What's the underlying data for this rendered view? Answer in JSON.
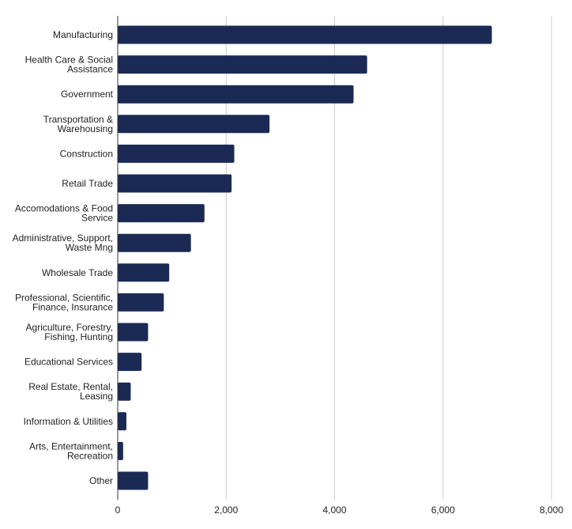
{
  "chart_data": {
    "type": "bar",
    "orientation": "horizontal",
    "title": "",
    "xlabel": "",
    "ylabel": "",
    "xlim": [
      0,
      8000
    ],
    "xticks": [
      0,
      2000,
      4000,
      6000,
      8000
    ],
    "xtick_labels": [
      "0",
      "2,000",
      "4,000",
      "6,000",
      "8,000"
    ],
    "grid": "vertical",
    "legend": "none",
    "bar_color": "#1b2a55",
    "categories": [
      [
        "Manufacturing"
      ],
      [
        "Health Care & Social",
        "Assistance"
      ],
      [
        "Government"
      ],
      [
        "Transportation &",
        "Warehousing"
      ],
      [
        "Construction"
      ],
      [
        "Retail Trade"
      ],
      [
        "Accomodations & Food",
        "Service"
      ],
      [
        "Administrative, Support,",
        "Waste Mng"
      ],
      [
        "Wholesale Trade"
      ],
      [
        "Professional, Scientific,",
        "Finance, Insurance"
      ],
      [
        "Agriculture, Forestry,",
        "Fishing, Hunting"
      ],
      [
        "Educational Services"
      ],
      [
        "Real Estate, Rental,",
        "Leasing"
      ],
      [
        "Information & Utilities"
      ],
      [
        "Arts, Entertainment,",
        "Recreation"
      ],
      [
        "Other"
      ]
    ],
    "values": [
      6900,
      4600,
      4350,
      2800,
      2150,
      2100,
      1600,
      1350,
      950,
      850,
      560,
      440,
      240,
      160,
      100,
      560
    ]
  }
}
